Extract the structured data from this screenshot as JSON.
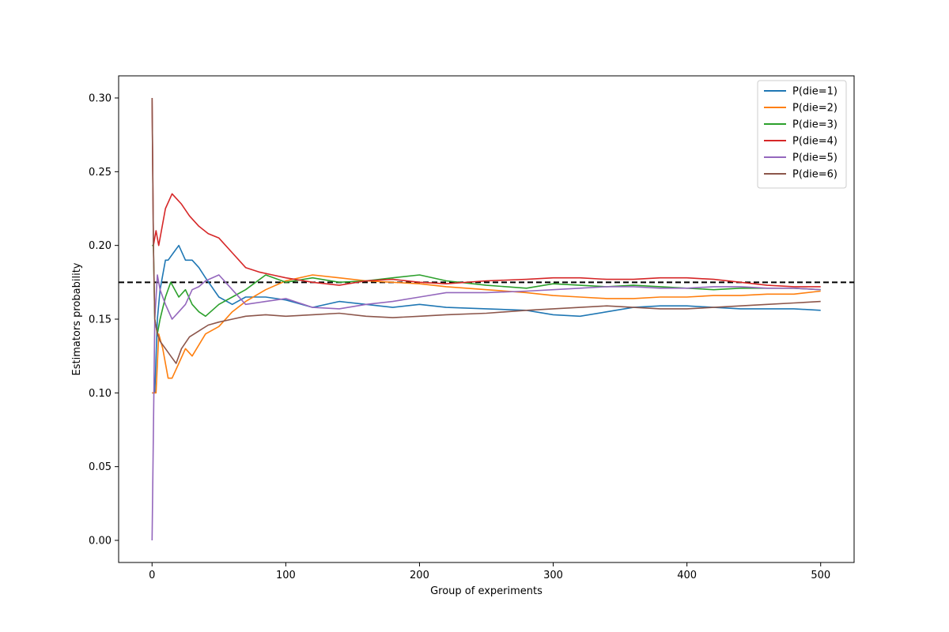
{
  "chart_data": {
    "type": "line",
    "title": "",
    "xlabel": "Group of experiments",
    "ylabel": "Estimators probability",
    "xlim": [
      -25,
      525
    ],
    "ylim": [
      -0.015,
      0.315
    ],
    "xticks": [
      0,
      100,
      200,
      300,
      400,
      500
    ],
    "xtick_labels": [
      "0",
      "100",
      "200",
      "300",
      "400",
      "500"
    ],
    "yticks": [
      0.0,
      0.05,
      0.1,
      0.15,
      0.2,
      0.25,
      0.3
    ],
    "ytick_labels": [
      "0.00",
      "0.05",
      "0.10",
      "0.15",
      "0.20",
      "0.25",
      "0.30"
    ],
    "grid": false,
    "legend_position": "top-right",
    "reference_line": {
      "y": 0.175,
      "style": "dashed",
      "color": "#000000"
    },
    "series": [
      {
        "name": "P(die=1)",
        "color": "#1f77b4",
        "x": [
          0,
          2,
          4,
          6,
          10,
          12,
          16,
          20,
          25,
          30,
          35,
          40,
          50,
          60,
          70,
          85,
          100,
          120,
          140,
          160,
          180,
          200,
          220,
          250,
          280,
          300,
          320,
          340,
          360,
          380,
          400,
          420,
          440,
          460,
          480,
          500
        ],
        "values": [
          0.1,
          0.1,
          0.15,
          0.17,
          0.19,
          0.19,
          0.195,
          0.2,
          0.19,
          0.19,
          0.185,
          0.178,
          0.165,
          0.16,
          0.165,
          0.165,
          0.163,
          0.158,
          0.162,
          0.16,
          0.158,
          0.16,
          0.158,
          0.157,
          0.156,
          0.153,
          0.152,
          0.155,
          0.158,
          0.159,
          0.159,
          0.158,
          0.157,
          0.157,
          0.157,
          0.156
        ]
      },
      {
        "name": "P(die=2)",
        "color": "#ff7f0e",
        "x": [
          0,
          2,
          3,
          5,
          8,
          12,
          15,
          20,
          25,
          30,
          40,
          50,
          60,
          70,
          85,
          100,
          120,
          140,
          160,
          180,
          200,
          220,
          250,
          280,
          300,
          320,
          340,
          360,
          380,
          400,
          420,
          440,
          460,
          480,
          500
        ],
        "values": [
          0.1,
          0.1,
          0.1,
          0.14,
          0.13,
          0.11,
          0.11,
          0.12,
          0.13,
          0.125,
          0.14,
          0.145,
          0.155,
          0.162,
          0.17,
          0.176,
          0.18,
          0.178,
          0.176,
          0.175,
          0.174,
          0.172,
          0.17,
          0.168,
          0.166,
          0.165,
          0.164,
          0.164,
          0.165,
          0.165,
          0.166,
          0.166,
          0.167,
          0.167,
          0.169
        ]
      },
      {
        "name": "P(die=3)",
        "color": "#2ca02c",
        "x": [
          0,
          1,
          2,
          4,
          6,
          10,
          14,
          20,
          25,
          30,
          35,
          40,
          50,
          60,
          70,
          85,
          100,
          120,
          140,
          160,
          180,
          200,
          220,
          250,
          280,
          300,
          320,
          340,
          360,
          380,
          400,
          420,
          440,
          460,
          480,
          500
        ],
        "values": [
          0.2,
          0.2,
          0.15,
          0.14,
          0.15,
          0.165,
          0.175,
          0.165,
          0.17,
          0.16,
          0.155,
          0.152,
          0.16,
          0.165,
          0.17,
          0.18,
          0.175,
          0.178,
          0.175,
          0.176,
          0.178,
          0.18,
          0.176,
          0.173,
          0.171,
          0.174,
          0.173,
          0.172,
          0.173,
          0.172,
          0.171,
          0.17,
          0.171,
          0.171,
          0.171,
          0.17
        ]
      },
      {
        "name": "P(die=4)",
        "color": "#d62728",
        "x": [
          0,
          1,
          3,
          5,
          7,
          10,
          15,
          18,
          22,
          28,
          35,
          42,
          50,
          60,
          70,
          80,
          90,
          100,
          120,
          140,
          160,
          180,
          200,
          220,
          250,
          280,
          300,
          320,
          340,
          360,
          380,
          400,
          420,
          440,
          460,
          480,
          500
        ],
        "values": [
          0.3,
          0.2,
          0.21,
          0.2,
          0.21,
          0.225,
          0.235,
          0.232,
          0.228,
          0.22,
          0.213,
          0.208,
          0.205,
          0.195,
          0.185,
          0.182,
          0.18,
          0.178,
          0.175,
          0.173,
          0.176,
          0.177,
          0.175,
          0.174,
          0.176,
          0.177,
          0.178,
          0.178,
          0.177,
          0.177,
          0.178,
          0.178,
          0.177,
          0.175,
          0.173,
          0.172,
          0.172
        ]
      },
      {
        "name": "P(die=5)",
        "color": "#9467bd",
        "x": [
          0,
          2,
          4,
          6,
          10,
          15,
          20,
          25,
          30,
          35,
          40,
          50,
          60,
          70,
          85,
          100,
          120,
          140,
          160,
          180,
          200,
          220,
          250,
          280,
          300,
          320,
          340,
          360,
          380,
          400,
          420,
          440,
          460,
          480,
          500
        ],
        "values": [
          0.0,
          0.15,
          0.18,
          0.17,
          0.16,
          0.15,
          0.155,
          0.16,
          0.17,
          0.172,
          0.176,
          0.18,
          0.17,
          0.16,
          0.162,
          0.164,
          0.158,
          0.157,
          0.16,
          0.162,
          0.165,
          0.168,
          0.168,
          0.169,
          0.17,
          0.171,
          0.172,
          0.172,
          0.171,
          0.171,
          0.172,
          0.172,
          0.171,
          0.171,
          0.17
        ]
      },
      {
        "name": "P(die=6)",
        "color": "#8c564b",
        "x": [
          0,
          1,
          2,
          4,
          6,
          10,
          14,
          18,
          22,
          28,
          35,
          42,
          50,
          60,
          70,
          85,
          100,
          120,
          140,
          160,
          180,
          200,
          220,
          250,
          280,
          300,
          320,
          340,
          360,
          380,
          400,
          420,
          440,
          460,
          480,
          500
        ],
        "values": [
          0.3,
          0.2,
          0.15,
          0.14,
          0.135,
          0.13,
          0.125,
          0.12,
          0.13,
          0.138,
          0.142,
          0.146,
          0.148,
          0.15,
          0.152,
          0.153,
          0.152,
          0.153,
          0.154,
          0.152,
          0.151,
          0.152,
          0.153,
          0.154,
          0.156,
          0.157,
          0.158,
          0.159,
          0.158,
          0.157,
          0.157,
          0.158,
          0.159,
          0.16,
          0.161,
          0.162
        ]
      }
    ]
  }
}
